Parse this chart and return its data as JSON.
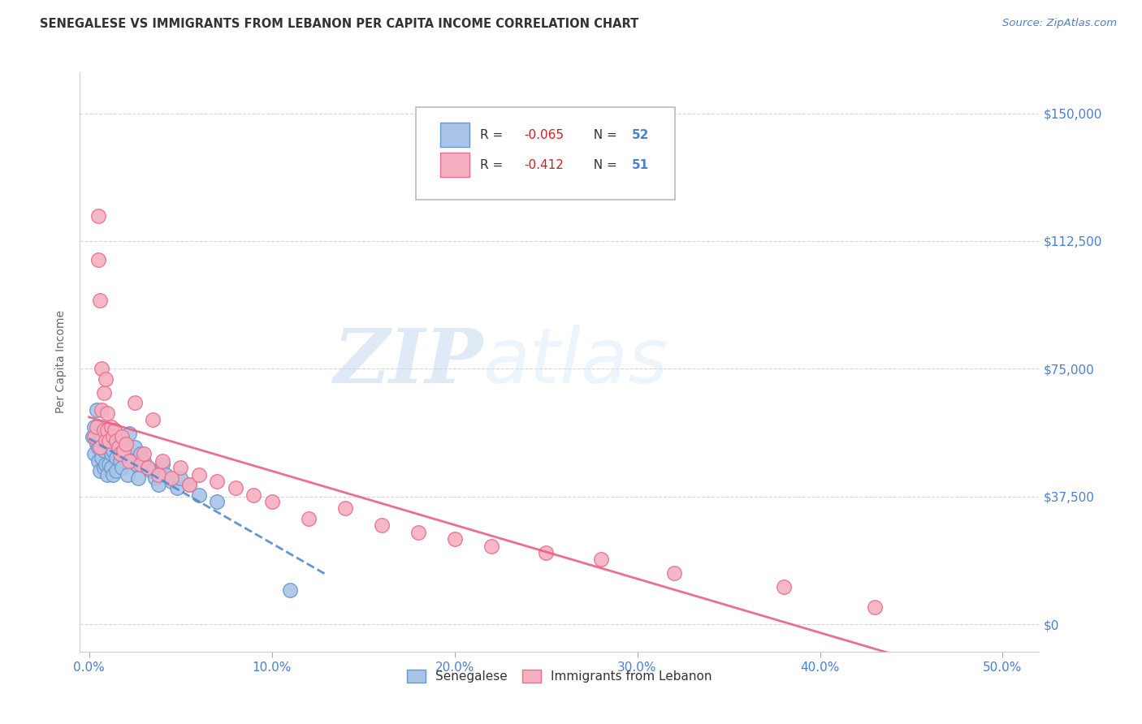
{
  "title": "SENEGALESE VS IMMIGRANTS FROM LEBANON PER CAPITA INCOME CORRELATION CHART",
  "source": "Source: ZipAtlas.com",
  "xlabel_ticks": [
    "0.0%",
    "10.0%",
    "20.0%",
    "30.0%",
    "40.0%",
    "50.0%"
  ],
  "xlabel_values": [
    0.0,
    0.1,
    0.2,
    0.3,
    0.4,
    0.5
  ],
  "ylabel": "Per Capita Income",
  "ytick_labels": [
    "$150,000",
    "$112,500",
    "$75,000",
    "$37,500",
    "$0"
  ],
  "ytick_values": [
    150000,
    112500,
    75000,
    37500,
    0
  ],
  "xlim": [
    -0.005,
    0.52
  ],
  "ylim": [
    -8000,
    162000
  ],
  "blue_R": "-0.065",
  "blue_N": "52",
  "pink_R": "-0.412",
  "pink_N": "51",
  "blue_color": "#aac4e8",
  "pink_color": "#f5afc0",
  "blue_edge_color": "#6699cc",
  "pink_edge_color": "#e87090",
  "blue_line_color": "#5588cc",
  "pink_line_color": "#e86080",
  "legend_label_blue": "Senegalese",
  "legend_label_pink": "Immigrants from Lebanon",
  "watermark_zip": "ZIP",
  "watermark_atlas": "atlas",
  "background_color": "#ffffff",
  "blue_scatter_x": [
    0.002,
    0.003,
    0.003,
    0.004,
    0.004,
    0.005,
    0.005,
    0.006,
    0.006,
    0.007,
    0.007,
    0.008,
    0.008,
    0.009,
    0.009,
    0.01,
    0.01,
    0.011,
    0.011,
    0.012,
    0.012,
    0.013,
    0.013,
    0.014,
    0.015,
    0.015,
    0.016,
    0.017,
    0.018,
    0.019,
    0.02,
    0.021,
    0.022,
    0.023,
    0.025,
    0.026,
    0.027,
    0.028,
    0.03,
    0.032,
    0.034,
    0.036,
    0.038,
    0.04,
    0.042,
    0.045,
    0.048,
    0.05,
    0.055,
    0.06,
    0.07,
    0.11
  ],
  "blue_scatter_y": [
    55000,
    58000,
    50000,
    53000,
    63000,
    52000,
    48000,
    56000,
    45000,
    54000,
    49000,
    51000,
    46000,
    55000,
    47000,
    52000,
    44000,
    53000,
    47000,
    50000,
    46000,
    51000,
    44000,
    57000,
    49000,
    45000,
    55000,
    48000,
    46000,
    52000,
    50000,
    44000,
    56000,
    48000,
    52000,
    47000,
    43000,
    50000,
    48000,
    46000,
    45000,
    43000,
    41000,
    47000,
    44000,
    42000,
    40000,
    43000,
    41000,
    38000,
    36000,
    10000
  ],
  "pink_scatter_x": [
    0.003,
    0.004,
    0.005,
    0.005,
    0.006,
    0.006,
    0.007,
    0.007,
    0.008,
    0.008,
    0.009,
    0.009,
    0.01,
    0.01,
    0.011,
    0.012,
    0.013,
    0.014,
    0.015,
    0.016,
    0.017,
    0.018,
    0.019,
    0.02,
    0.022,
    0.025,
    0.028,
    0.03,
    0.032,
    0.035,
    0.038,
    0.04,
    0.045,
    0.05,
    0.055,
    0.06,
    0.07,
    0.08,
    0.09,
    0.1,
    0.12,
    0.14,
    0.16,
    0.18,
    0.2,
    0.22,
    0.25,
    0.28,
    0.32,
    0.38,
    0.43
  ],
  "pink_scatter_y": [
    55000,
    58000,
    120000,
    107000,
    52000,
    95000,
    63000,
    75000,
    57000,
    68000,
    54000,
    72000,
    57000,
    62000,
    54000,
    58000,
    55000,
    57000,
    54000,
    52000,
    50000,
    55000,
    51000,
    53000,
    48000,
    65000,
    47000,
    50000,
    46000,
    60000,
    44000,
    48000,
    43000,
    46000,
    41000,
    44000,
    42000,
    40000,
    38000,
    36000,
    31000,
    34000,
    29000,
    27000,
    25000,
    23000,
    21000,
    19000,
    15000,
    11000,
    5000
  ]
}
